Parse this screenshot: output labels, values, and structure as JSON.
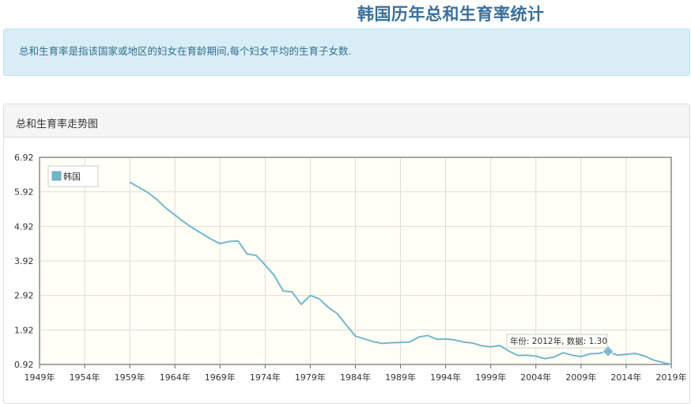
{
  "page": {
    "title": "韩国历年总和生育率统计",
    "description": "总和生育率是指该国家或地区的妇女在育龄期间,每个妇女平均的生育子女数."
  },
  "panel": {
    "title": "总和生育率走势图"
  },
  "colors": {
    "title": "#3a6f9a",
    "info_bg": "#d9edf7",
    "info_text": "#31708f",
    "series": "#74b7cc",
    "plot_bg": "#fffff6"
  },
  "chart_data": {
    "type": "line",
    "legend": {
      "placement": "top-left",
      "label": "韩国"
    },
    "x_tick_labels": [
      "1949年",
      "1954年",
      "1959年",
      "1964年",
      "1969年",
      "1974年",
      "1979年",
      "1984年",
      "1989年",
      "1994年",
      "1999年",
      "2004年",
      "2009年",
      "2014年",
      "2019年"
    ],
    "y_tick_labels": [
      "0.92",
      "1.92",
      "2.92",
      "3.92",
      "4.92",
      "5.92",
      "6.92"
    ],
    "xlim": [
      1949,
      2019
    ],
    "ylim": [
      0.92,
      6.92
    ],
    "grid": true,
    "series": [
      {
        "name": "韩国",
        "x": [
          1959,
          1960,
          1961,
          1962,
          1963,
          1964,
          1965,
          1966,
          1967,
          1968,
          1969,
          1970,
          1971,
          1972,
          1973,
          1974,
          1975,
          1976,
          1977,
          1978,
          1979,
          1980,
          1981,
          1982,
          1983,
          1984,
          1985,
          1986,
          1987,
          1988,
          1989,
          1990,
          1991,
          1992,
          1993,
          1994,
          1995,
          1996,
          1997,
          1998,
          1999,
          2000,
          2001,
          2002,
          2003,
          2004,
          2005,
          2006,
          2007,
          2008,
          2009,
          2010,
          2011,
          2012,
          2013,
          2014,
          2015,
          2016,
          2017,
          2018,
          2019
        ],
        "y": [
          6.2,
          6.05,
          5.9,
          5.7,
          5.45,
          5.25,
          5.05,
          4.87,
          4.71,
          4.55,
          4.42,
          4.48,
          4.5,
          4.12,
          4.08,
          3.8,
          3.5,
          3.05,
          3.02,
          2.66,
          2.92,
          2.82,
          2.57,
          2.39,
          2.06,
          1.74,
          1.66,
          1.58,
          1.53,
          1.55,
          1.56,
          1.57,
          1.71,
          1.76,
          1.65,
          1.66,
          1.63,
          1.57,
          1.54,
          1.46,
          1.43,
          1.47,
          1.31,
          1.18,
          1.19,
          1.16,
          1.09,
          1.13,
          1.26,
          1.19,
          1.15,
          1.23,
          1.24,
          1.3,
          1.19,
          1.21,
          1.24,
          1.17,
          1.05,
          0.98,
          0.92
        ]
      }
    ],
    "tooltip": {
      "text": "年份: 2012年, 数据: 1.30",
      "x": 2012,
      "y": 1.3
    }
  }
}
